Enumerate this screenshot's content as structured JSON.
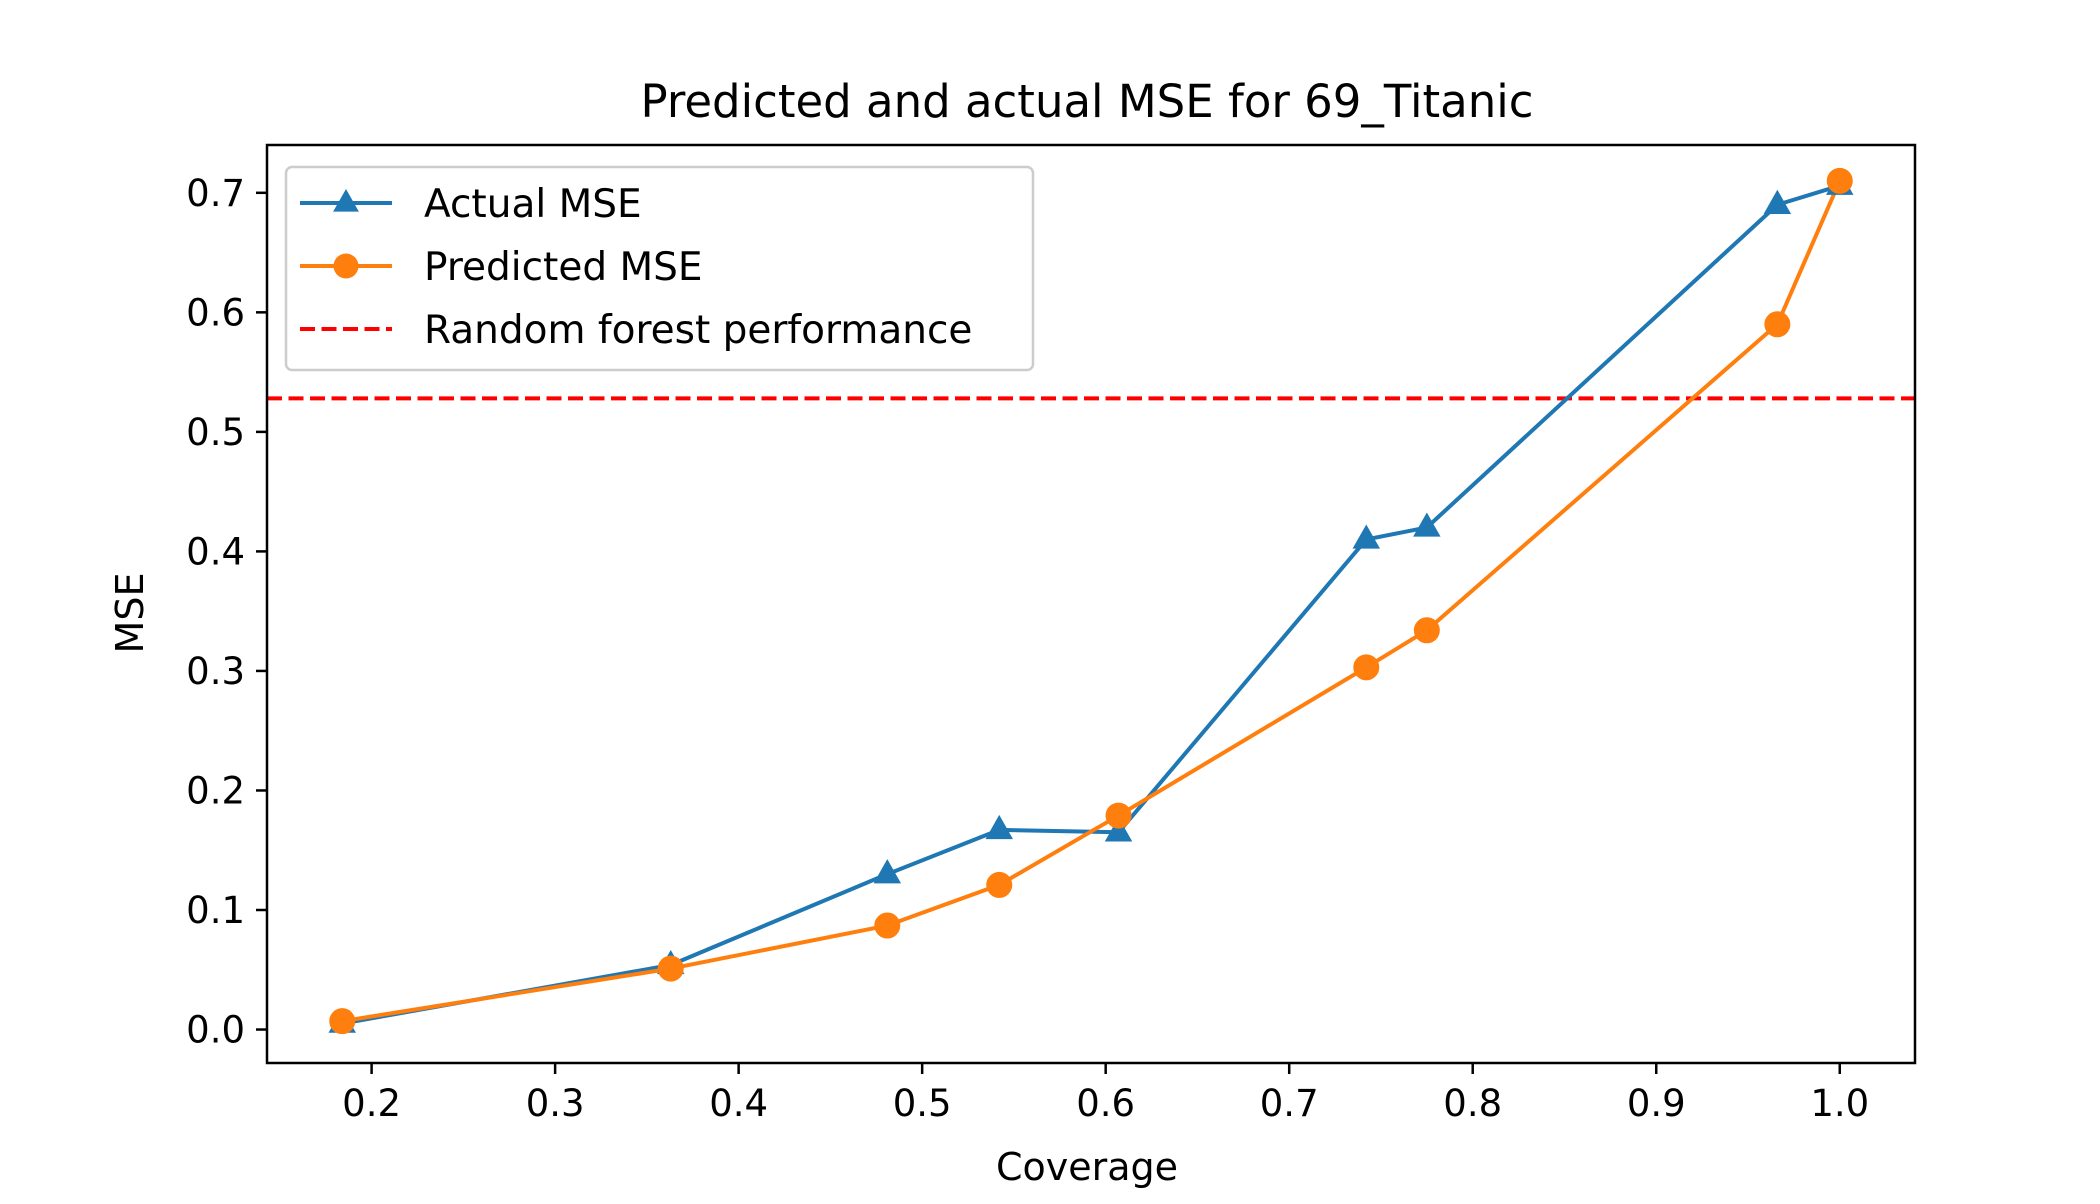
{
  "chart_data": {
    "type": "line",
    "title": "Predicted and actual MSE for 69_Titanic",
    "xlabel": "Coverage",
    "ylabel": "MSE",
    "xlim": [
      0.143,
      1.041
    ],
    "ylim": [
      -0.028,
      0.74
    ],
    "xticks": [
      0.2,
      0.3,
      0.4,
      0.5,
      0.6,
      0.7,
      0.8,
      0.9,
      1.0
    ],
    "xtick_labels": [
      "0.2",
      "0.3",
      "0.4",
      "0.5",
      "0.6",
      "0.7",
      "0.8",
      "0.9",
      "1.0"
    ],
    "yticks": [
      0.0,
      0.1,
      0.2,
      0.3,
      0.4,
      0.5,
      0.6,
      0.7
    ],
    "ytick_labels": [
      "0.0",
      "0.1",
      "0.2",
      "0.3",
      "0.4",
      "0.5",
      "0.6",
      "0.7"
    ],
    "grid": false,
    "legend_position": "upper-left",
    "series": [
      {
        "name": "Actual MSE",
        "color": "#1f77b4",
        "marker": "triangle",
        "x": [
          0.184,
          0.363,
          0.481,
          0.542,
          0.607,
          0.742,
          0.775,
          0.966,
          1.0
        ],
        "y": [
          0.005,
          0.054,
          0.13,
          0.167,
          0.165,
          0.41,
          0.42,
          0.69,
          0.706
        ]
      },
      {
        "name": "Predicted MSE",
        "color": "#ff7f0e",
        "marker": "circle",
        "x": [
          0.184,
          0.363,
          0.481,
          0.542,
          0.607,
          0.742,
          0.775,
          0.966,
          1.0
        ],
        "y": [
          0.007,
          0.051,
          0.087,
          0.121,
          0.179,
          0.303,
          0.334,
          0.59,
          0.71
        ]
      }
    ],
    "reference_lines": [
      {
        "name": "Random forest performance",
        "orientation": "horizontal",
        "y": 0.528,
        "color": "#ff0000",
        "style": "dashed"
      }
    ]
  }
}
